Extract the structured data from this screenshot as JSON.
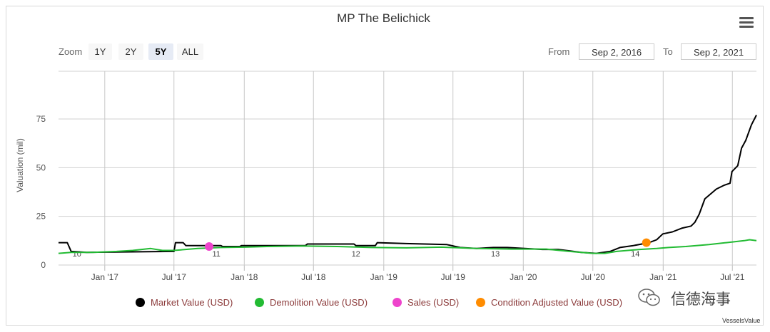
{
  "toolbar": {
    "zoom_label": "Zoom",
    "zoom_buttons": [
      "1Y",
      "2Y",
      "5Y",
      "ALL"
    ],
    "zoom_selected": "5Y",
    "from_label": "From",
    "from_value": "Sep 2, 2016",
    "to_label": "To",
    "to_value": "Sep 2, 2021"
  },
  "watermark": "信德海事",
  "credit": "VesselsValue",
  "chart_data": {
    "type": "line",
    "title": "MP The Belichick",
    "ylabel": "Valuation (mil)",
    "xlabel": "",
    "ylim": [
      0,
      75
    ],
    "yticks": [
      0,
      25,
      50,
      75
    ],
    "x_range": [
      "2016-09-02",
      "2021-09-02"
    ],
    "xticks": [
      {
        "date": "2017-01-01",
        "label": "Jan '17"
      },
      {
        "date": "2017-07-01",
        "label": "Jul '17"
      },
      {
        "date": "2018-01-01",
        "label": "Jan '18"
      },
      {
        "date": "2018-07-01",
        "label": "Jul '18"
      },
      {
        "date": "2019-01-01",
        "label": "Jan '19"
      },
      {
        "date": "2019-07-01",
        "label": "Jul '19"
      },
      {
        "date": "2020-01-01",
        "label": "Jan '20"
      },
      {
        "date": "2020-07-01",
        "label": "Jul '20"
      },
      {
        "date": "2021-01-01",
        "label": "Jan '21"
      },
      {
        "date": "2021-07-01",
        "label": "Jul '21"
      }
    ],
    "age_labels": [
      {
        "date": "2016-10-20",
        "label": "10"
      },
      {
        "date": "2017-10-20",
        "label": "11"
      },
      {
        "date": "2018-10-20",
        "label": "12"
      },
      {
        "date": "2019-10-20",
        "label": "13"
      },
      {
        "date": "2020-10-20",
        "label": "14"
      }
    ],
    "grid": true,
    "legend_position": "bottom",
    "series": [
      {
        "name": "Market Value (USD)",
        "color": "#000000",
        "points": [
          [
            "2016-09-02",
            11.5
          ],
          [
            "2016-09-25",
            11.5
          ],
          [
            "2016-10-05",
            7
          ],
          [
            "2016-11-15",
            6.5
          ],
          [
            "2017-07-01",
            7
          ],
          [
            "2017-07-05",
            11.5
          ],
          [
            "2017-07-25",
            11.5
          ],
          [
            "2017-08-01",
            10
          ],
          [
            "2017-11-01",
            10
          ],
          [
            "2017-11-05",
            9.5
          ],
          [
            "2017-12-20",
            9.5
          ],
          [
            "2017-12-25",
            10
          ],
          [
            "2018-06-10",
            10
          ],
          [
            "2018-06-15",
            10.8
          ],
          [
            "2018-10-15",
            10.8
          ],
          [
            "2018-10-20",
            10
          ],
          [
            "2018-12-10",
            10
          ],
          [
            "2018-12-15",
            11.5
          ],
          [
            "2019-03-01",
            11
          ],
          [
            "2019-06-15",
            10.5
          ],
          [
            "2019-07-20",
            9
          ],
          [
            "2019-09-01",
            8.5
          ],
          [
            "2019-10-15",
            9
          ],
          [
            "2019-11-20",
            9
          ],
          [
            "2020-01-05",
            8.5
          ],
          [
            "2020-02-20",
            8
          ],
          [
            "2020-04-01",
            8
          ],
          [
            "2020-06-01",
            6.5
          ],
          [
            "2020-07-10",
            6
          ],
          [
            "2020-08-15",
            7
          ],
          [
            "2020-09-10",
            9
          ],
          [
            "2020-10-15",
            10
          ],
          [
            "2020-11-25",
            11.5
          ],
          [
            "2020-12-15",
            13
          ],
          [
            "2020-12-31",
            16
          ],
          [
            "2021-01-25",
            17
          ],
          [
            "2021-02-20",
            19
          ],
          [
            "2021-03-15",
            20
          ],
          [
            "2021-03-25",
            22
          ],
          [
            "2021-04-05",
            26
          ],
          [
            "2021-04-20",
            34
          ],
          [
            "2021-05-20",
            39
          ],
          [
            "2021-06-10",
            41
          ],
          [
            "2021-06-25",
            42
          ],
          [
            "2021-06-30",
            48
          ],
          [
            "2021-07-15",
            51
          ],
          [
            "2021-07-25",
            60
          ],
          [
            "2021-08-05",
            64
          ],
          [
            "2021-08-20",
            72
          ],
          [
            "2021-09-02",
            77
          ]
        ]
      },
      {
        "name": "Demolition Value (USD)",
        "color": "#22bb33",
        "points": [
          [
            "2016-09-02",
            6
          ],
          [
            "2016-10-05",
            6.5
          ],
          [
            "2016-12-01",
            6.5
          ],
          [
            "2017-02-01",
            7
          ],
          [
            "2017-03-15",
            7.5
          ],
          [
            "2017-05-01",
            8.5
          ],
          [
            "2017-06-01",
            7.5
          ],
          [
            "2017-07-01",
            7.5
          ],
          [
            "2017-09-01",
            8.5
          ],
          [
            "2017-11-01",
            9
          ],
          [
            "2018-01-01",
            9.2
          ],
          [
            "2018-03-01",
            9.5
          ],
          [
            "2018-06-01",
            9.8
          ],
          [
            "2018-09-01",
            9.5
          ],
          [
            "2018-12-01",
            9
          ],
          [
            "2019-03-01",
            8.8
          ],
          [
            "2019-06-01",
            9.2
          ],
          [
            "2019-09-01",
            8.5
          ],
          [
            "2019-12-01",
            8.2
          ],
          [
            "2020-03-01",
            8.2
          ],
          [
            "2020-05-01",
            7
          ],
          [
            "2020-07-01",
            6
          ],
          [
            "2020-08-01",
            6
          ],
          [
            "2020-09-01",
            7
          ],
          [
            "2020-11-01",
            8
          ],
          [
            "2020-12-15",
            8.5
          ],
          [
            "2021-01-15",
            9
          ],
          [
            "2021-03-01",
            9.5
          ],
          [
            "2021-05-01",
            10.5
          ],
          [
            "2021-06-15",
            11.5
          ],
          [
            "2021-08-01",
            12.5
          ],
          [
            "2021-08-15",
            13
          ],
          [
            "2021-09-02",
            12.5
          ]
        ]
      },
      {
        "name": "Sales (USD)",
        "color": "#ee44cc",
        "points": [
          [
            "2017-10-01",
            9.5
          ]
        ]
      },
      {
        "name": "Condition Adjusted Value (USD)",
        "color": "#ff8c00",
        "points": [
          [
            "2020-11-18",
            11.5
          ]
        ]
      }
    ]
  }
}
